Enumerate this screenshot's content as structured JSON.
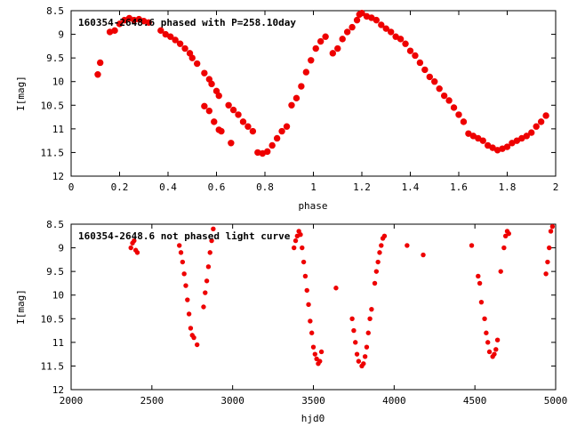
{
  "chart_data": [
    {
      "type": "scatter",
      "title": "160354-2648.6 phased with P=258.10day",
      "xlabel": "phase",
      "ylabel": "I[mag]",
      "xlim": [
        0,
        2
      ],
      "ylim": [
        12,
        8.5
      ],
      "y_inverted": true,
      "grid": false,
      "marker_color": "#ee0000",
      "xticks": [
        "0",
        "0.2",
        "0.4",
        "0.6",
        "0.8",
        "1",
        "1.2",
        "1.4",
        "1.6",
        "1.8",
        "2"
      ],
      "xtick_values": [
        0,
        0.2,
        0.4,
        0.6,
        0.8,
        1.0,
        1.2,
        1.4,
        1.6,
        1.8,
        2.0
      ],
      "yticks": [
        "8.5",
        "9",
        "9.5",
        "10",
        "10.5",
        "11",
        "11.5",
        "12"
      ],
      "ytick_values": [
        8.5,
        9,
        9.5,
        10,
        10.5,
        11,
        11.5,
        12
      ],
      "points": [
        [
          0.11,
          9.85
        ],
        [
          0.12,
          9.6
        ],
        [
          0.16,
          8.95
        ],
        [
          0.18,
          8.92
        ],
        [
          0.2,
          8.78
        ],
        [
          0.22,
          8.7
        ],
        [
          0.24,
          8.66
        ],
        [
          0.26,
          8.7
        ],
        [
          0.28,
          8.68
        ],
        [
          0.3,
          8.72
        ],
        [
          0.32,
          8.75
        ],
        [
          0.37,
          8.92
        ],
        [
          0.39,
          9.0
        ],
        [
          0.41,
          9.05
        ],
        [
          0.43,
          9.12
        ],
        [
          0.45,
          9.2
        ],
        [
          0.47,
          9.3
        ],
        [
          0.49,
          9.4
        ],
        [
          0.5,
          9.5
        ],
        [
          0.52,
          9.62
        ],
        [
          0.55,
          9.82
        ],
        [
          0.57,
          9.95
        ],
        [
          0.58,
          10.05
        ],
        [
          0.6,
          10.2
        ],
        [
          0.61,
          10.3
        ],
        [
          0.55,
          10.52
        ],
        [
          0.57,
          10.62
        ],
        [
          0.59,
          10.85
        ],
        [
          0.61,
          11.02
        ],
        [
          0.62,
          11.05
        ],
        [
          0.66,
          11.3
        ],
        [
          0.65,
          10.5
        ],
        [
          0.67,
          10.6
        ],
        [
          0.69,
          10.7
        ],
        [
          0.71,
          10.85
        ],
        [
          0.73,
          10.95
        ],
        [
          0.75,
          11.05
        ],
        [
          0.77,
          11.5
        ],
        [
          0.79,
          11.52
        ],
        [
          0.81,
          11.48
        ],
        [
          0.83,
          11.35
        ],
        [
          0.85,
          11.2
        ],
        [
          0.87,
          11.05
        ],
        [
          0.89,
          10.95
        ],
        [
          0.91,
          10.5
        ],
        [
          0.93,
          10.35
        ],
        [
          0.95,
          10.1
        ],
        [
          0.97,
          9.8
        ],
        [
          0.99,
          9.55
        ],
        [
          1.01,
          9.3
        ],
        [
          1.03,
          9.15
        ],
        [
          1.05,
          9.05
        ],
        [
          1.08,
          9.4
        ],
        [
          1.1,
          9.3
        ],
        [
          1.12,
          9.1
        ],
        [
          1.14,
          8.95
        ],
        [
          1.16,
          8.85
        ],
        [
          1.18,
          8.7
        ],
        [
          1.19,
          8.58
        ],
        [
          1.2,
          8.55
        ],
        [
          1.22,
          8.62
        ],
        [
          1.24,
          8.65
        ],
        [
          1.26,
          8.7
        ],
        [
          1.28,
          8.8
        ],
        [
          1.3,
          8.88
        ],
        [
          1.32,
          8.95
        ],
        [
          1.34,
          9.05
        ],
        [
          1.36,
          9.1
        ],
        [
          1.38,
          9.2
        ],
        [
          1.4,
          9.35
        ],
        [
          1.42,
          9.45
        ],
        [
          1.44,
          9.6
        ],
        [
          1.46,
          9.75
        ],
        [
          1.48,
          9.9
        ],
        [
          1.5,
          10.0
        ],
        [
          1.52,
          10.15
        ],
        [
          1.54,
          10.3
        ],
        [
          1.56,
          10.4
        ],
        [
          1.58,
          10.55
        ],
        [
          1.6,
          10.7
        ],
        [
          1.62,
          10.85
        ],
        [
          1.64,
          11.1
        ],
        [
          1.66,
          11.15
        ],
        [
          1.68,
          11.2
        ],
        [
          1.7,
          11.25
        ],
        [
          1.72,
          11.35
        ],
        [
          1.74,
          11.4
        ],
        [
          1.76,
          11.45
        ],
        [
          1.78,
          11.42
        ],
        [
          1.8,
          11.38
        ],
        [
          1.82,
          11.3
        ],
        [
          1.84,
          11.25
        ],
        [
          1.86,
          11.2
        ],
        [
          1.88,
          11.15
        ],
        [
          1.9,
          11.08
        ],
        [
          1.92,
          10.95
        ],
        [
          1.94,
          10.85
        ],
        [
          1.96,
          10.72
        ]
      ]
    },
    {
      "type": "scatter",
      "title": "160354-2648.6 not phased light curve",
      "xlabel": "hjd0",
      "ylabel": "I[mag]",
      "xlim": [
        2000,
        5000
      ],
      "ylim": [
        12,
        8.5
      ],
      "y_inverted": true,
      "grid": false,
      "marker_color": "#ee0000",
      "xticks": [
        "2000",
        "2500",
        "3000",
        "3500",
        "4000",
        "4500",
        "5000"
      ],
      "xtick_values": [
        2000,
        2500,
        3000,
        3500,
        4000,
        4500,
        5000
      ],
      "yticks": [
        "8.5",
        "9",
        "9.5",
        "10",
        "10.5",
        "11",
        "11.5",
        "12"
      ],
      "ytick_values": [
        8.5,
        9,
        9.5,
        10,
        10.5,
        11,
        11.5,
        12
      ],
      "points": [
        [
          2370,
          9.0
        ],
        [
          2380,
          8.9
        ],
        [
          2390,
          8.85
        ],
        [
          2400,
          9.05
        ],
        [
          2410,
          9.1
        ],
        [
          2670,
          8.95
        ],
        [
          2680,
          9.1
        ],
        [
          2690,
          9.3
        ],
        [
          2700,
          9.55
        ],
        [
          2710,
          9.8
        ],
        [
          2720,
          10.1
        ],
        [
          2730,
          10.4
        ],
        [
          2740,
          10.7
        ],
        [
          2750,
          10.85
        ],
        [
          2760,
          10.9
        ],
        [
          2780,
          11.05
        ],
        [
          2820,
          10.25
        ],
        [
          2830,
          9.95
        ],
        [
          2840,
          9.7
        ],
        [
          2850,
          9.4
        ],
        [
          2860,
          9.1
        ],
        [
          2870,
          8.85
        ],
        [
          2880,
          8.6
        ],
        [
          3380,
          9.0
        ],
        [
          3390,
          8.85
        ],
        [
          3400,
          8.75
        ],
        [
          3410,
          8.65
        ],
        [
          3420,
          8.72
        ],
        [
          3430,
          9.0
        ],
        [
          3440,
          9.3
        ],
        [
          3450,
          9.6
        ],
        [
          3460,
          9.9
        ],
        [
          3470,
          10.2
        ],
        [
          3480,
          10.55
        ],
        [
          3490,
          10.8
        ],
        [
          3500,
          11.1
        ],
        [
          3510,
          11.25
        ],
        [
          3520,
          11.35
        ],
        [
          3530,
          11.45
        ],
        [
          3540,
          11.4
        ],
        [
          3550,
          11.2
        ],
        [
          3640,
          9.85
        ],
        [
          3740,
          10.5
        ],
        [
          3750,
          10.75
        ],
        [
          3760,
          11.0
        ],
        [
          3770,
          11.25
        ],
        [
          3780,
          11.4
        ],
        [
          3800,
          11.5
        ],
        [
          3810,
          11.45
        ],
        [
          3820,
          11.3
        ],
        [
          3830,
          11.1
        ],
        [
          3840,
          10.8
        ],
        [
          3850,
          10.5
        ],
        [
          3860,
          10.3
        ],
        [
          3880,
          9.75
        ],
        [
          3890,
          9.5
        ],
        [
          3900,
          9.3
        ],
        [
          3910,
          9.1
        ],
        [
          3920,
          8.95
        ],
        [
          3930,
          8.8
        ],
        [
          3940,
          8.75
        ],
        [
          4080,
          8.95
        ],
        [
          4180,
          9.15
        ],
        [
          4480,
          8.95
        ],
        [
          4520,
          9.6
        ],
        [
          4530,
          9.75
        ],
        [
          4540,
          10.15
        ],
        [
          4560,
          10.5
        ],
        [
          4570,
          10.8
        ],
        [
          4580,
          11.0
        ],
        [
          4590,
          11.2
        ],
        [
          4610,
          11.3
        ],
        [
          4620,
          11.25
        ],
        [
          4630,
          11.15
        ],
        [
          4640,
          10.95
        ],
        [
          4660,
          9.5
        ],
        [
          4680,
          9.0
        ],
        [
          4690,
          8.75
        ],
        [
          4700,
          8.65
        ],
        [
          4710,
          8.7
        ],
        [
          4940,
          9.55
        ],
        [
          4950,
          9.3
        ],
        [
          4960,
          9.0
        ],
        [
          4970,
          8.65
        ],
        [
          4980,
          8.55
        ]
      ]
    }
  ]
}
